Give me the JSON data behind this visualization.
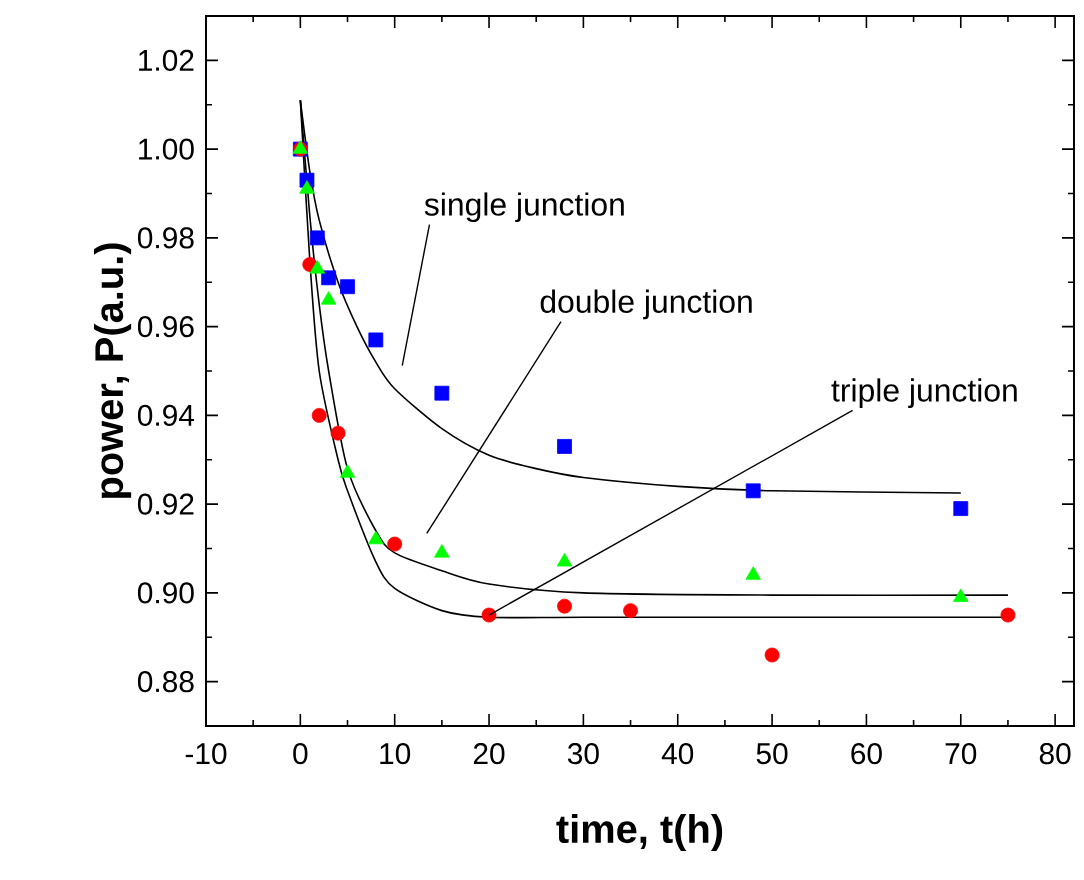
{
  "chart_data": {
    "type": "scatter",
    "xlabel": "time, t(h)",
    "ylabel": "power, P(a.u.)",
    "xlim": [
      -10,
      82
    ],
    "ylim": [
      0.87,
      1.03
    ],
    "xticks": [
      -10,
      0,
      10,
      20,
      30,
      40,
      50,
      60,
      70,
      80
    ],
    "yticks": [
      0.88,
      {
        "value": 0.9,
        "label": "0.90"
      },
      0.92,
      0.94,
      0.96,
      0.98,
      {
        "value": 1.0,
        "label": "1.00"
      },
      1.02
    ],
    "series": [
      {
        "marker": "square",
        "color": "#0000ff",
        "x": [
          0,
          0.7,
          1.8,
          3,
          5,
          8,
          15,
          28,
          48,
          70
        ],
        "values": [
          1.0,
          0.993,
          0.98,
          0.971,
          0.969,
          0.957,
          0.945,
          0.933,
          0.923,
          0.919
        ]
      },
      {
        "marker": "circle",
        "color": "#ff0000",
        "x": [
          0,
          1,
          2,
          4,
          10,
          20,
          28,
          35,
          50,
          75
        ],
        "values": [
          1.0,
          0.974,
          0.94,
          0.936,
          0.911,
          0.895,
          0.897,
          0.896,
          0.886,
          0.895
        ]
      },
      {
        "marker": "triangle",
        "color": "#00ff00",
        "x": [
          0,
          0.7,
          1.8,
          3,
          5,
          8,
          15,
          28,
          48,
          70
        ],
        "values": [
          1.0,
          0.991,
          0.973,
          0.966,
          0.927,
          0.912,
          0.909,
          0.907,
          0.904,
          0.899
        ]
      },
      {
        "type": "line",
        "color": "#000000",
        "x": [
          0,
          1,
          2,
          4,
          6,
          8,
          10,
          15,
          20,
          25,
          30,
          40,
          50,
          70
        ],
        "values": [
          1.011,
          0.995,
          0.984,
          0.97,
          0.96,
          0.952,
          0.946,
          0.937,
          0.931,
          0.928,
          0.926,
          0.924,
          0.923,
          0.9225
        ]
      },
      {
        "type": "line",
        "color": "#000000",
        "x": [
          0,
          1,
          2,
          3,
          5,
          8,
          10,
          15,
          20,
          30,
          50,
          75
        ],
        "values": [
          1.011,
          0.985,
          0.965,
          0.95,
          0.928,
          0.914,
          0.909,
          0.905,
          0.902,
          0.9,
          0.8995,
          0.8995
        ]
      },
      {
        "type": "line",
        "color": "#000000",
        "x": [
          0,
          1,
          2,
          4,
          5,
          8,
          10,
          15,
          20,
          30,
          50,
          75
        ],
        "values": [
          1.011,
          0.975,
          0.95,
          0.93,
          0.923,
          0.907,
          0.901,
          0.896,
          0.8945,
          0.8945,
          0.8945,
          0.8945
        ]
      }
    ],
    "annotations": [
      "single junction",
      "double junction",
      {
        "text": "triple junction",
        "x": 20,
        "y": 0.895
      }
    ]
  }
}
